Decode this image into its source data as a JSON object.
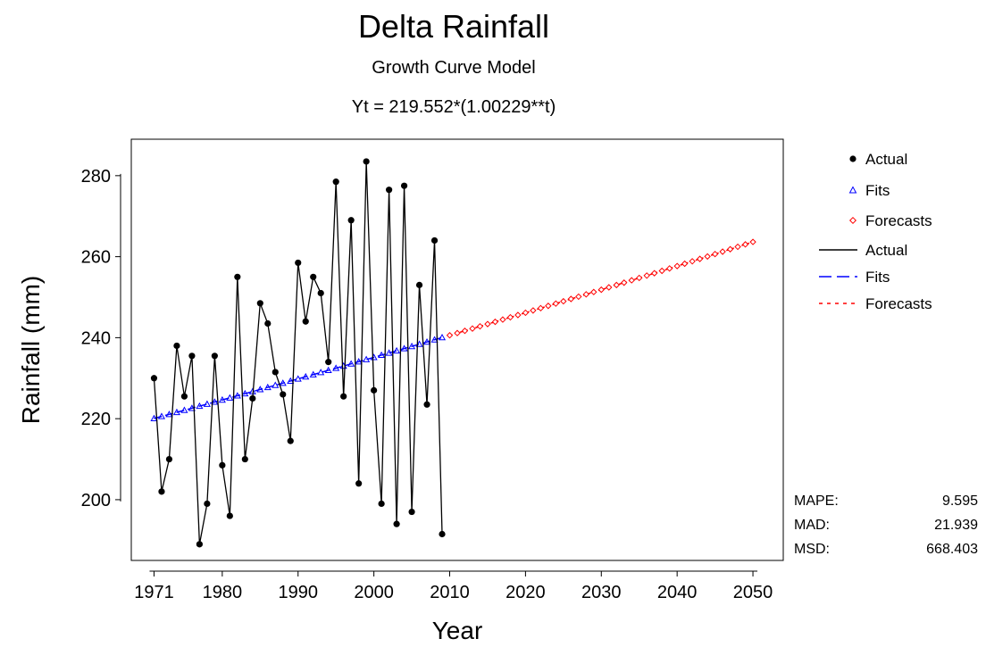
{
  "chart_data": {
    "type": "line",
    "title": "Delta Rainfall",
    "subtitle": "Growth Curve Model",
    "equation": "Yt = 219.552*(1.00229**t)",
    "xlabel": "Year",
    "ylabel": "Rainfall (mm)",
    "xlim": [
      1968,
      2054
    ],
    "ylim": [
      185,
      289
    ],
    "x_ticks": [
      1971,
      1980,
      1990,
      2000,
      2010,
      2020,
      2030,
      2040,
      2050
    ],
    "y_ticks": [
      200,
      220,
      240,
      260,
      280
    ],
    "grid": false,
    "legend_position": "right",
    "legend": {
      "markers": [
        {
          "label": "Actual",
          "symbol": "dot",
          "color": "#000000"
        },
        {
          "label": "Fits",
          "symbol": "triangle",
          "color": "#0000ff"
        },
        {
          "label": "Forecasts",
          "symbol": "diamond",
          "color": "#ff0000"
        }
      ],
      "lines": [
        {
          "label": "Actual",
          "style": "solid",
          "color": "#000000"
        },
        {
          "label": "Fits",
          "style": "dashed",
          "color": "#0000ff"
        },
        {
          "label": "Forecasts",
          "style": "dotted",
          "color": "#ff0000"
        }
      ]
    },
    "accuracy": [
      {
        "label": "MAPE:",
        "value": "9.595"
      },
      {
        "label": "MAD:",
        "value": "21.939"
      },
      {
        "label": "MSD:",
        "value": "668.403"
      }
    ],
    "model": {
      "a": 219.552,
      "b": 1.00229,
      "t_start_year": 1970
    },
    "fits_years": [
      1971,
      2009
    ],
    "forecast_years": [
      2010,
      2050
    ],
    "series": [
      {
        "name": "Actual",
        "color": "#000000",
        "x": [
          1971,
          1972,
          1973,
          1974,
          1975,
          1976,
          1977,
          1978,
          1979,
          1980,
          1981,
          1982,
          1983,
          1984,
          1985,
          1986,
          1987,
          1988,
          1989,
          1990,
          1991,
          1992,
          1993,
          1994,
          1995,
          1996,
          1997,
          1998,
          1999,
          2000,
          2001,
          2002,
          2003,
          2004,
          2005,
          2006,
          2007,
          2008,
          2009
        ],
        "y": [
          230,
          202,
          210,
          238,
          225.5,
          235.5,
          189,
          199,
          235.5,
          208.5,
          196,
          255,
          210,
          225,
          248.5,
          243.5,
          231.5,
          226,
          214.5,
          258.5,
          244,
          255,
          251,
          234,
          278.5,
          225.5,
          269,
          204,
          283.5,
          227,
          199,
          276.5,
          194,
          277.5,
          197,
          253,
          223.5,
          264,
          191.5
        ]
      },
      {
        "name": "Fits",
        "color": "#0000ff"
      },
      {
        "name": "Forecasts",
        "color": "#ff0000"
      }
    ]
  }
}
